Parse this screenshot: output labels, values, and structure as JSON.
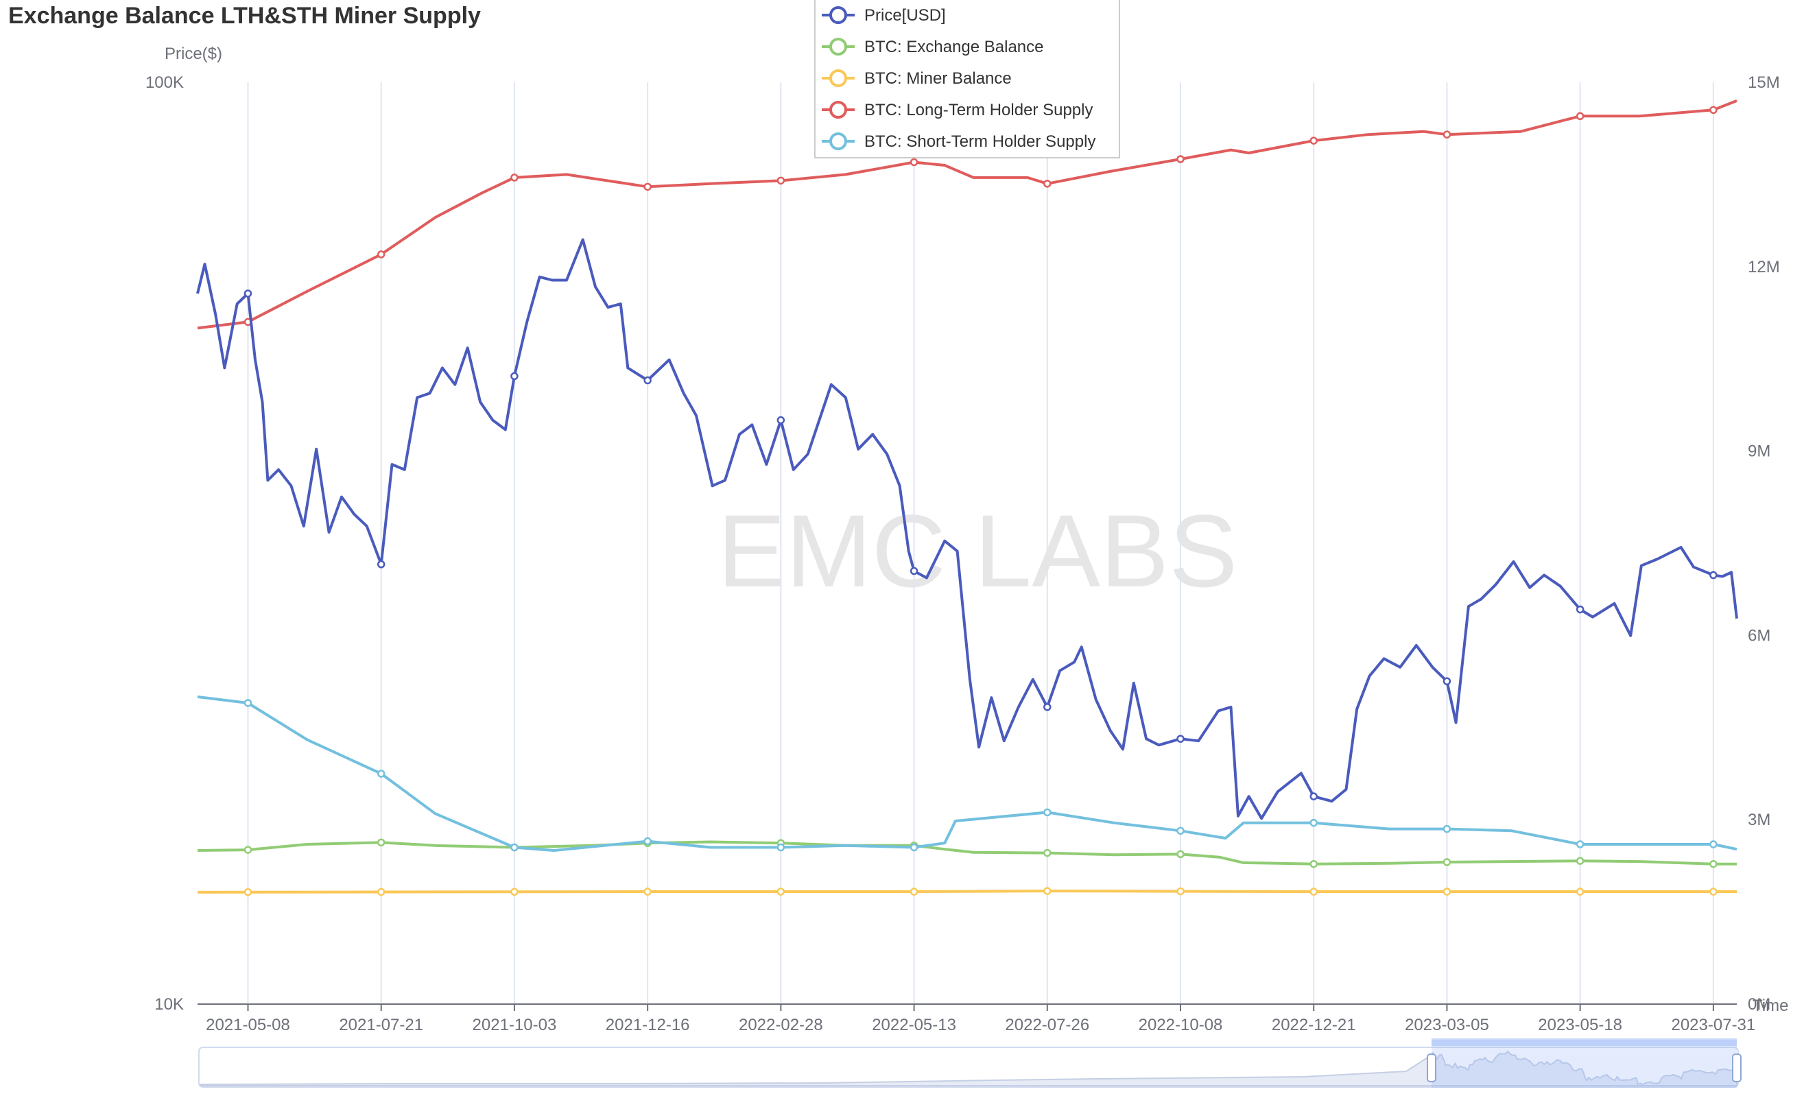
{
  "chart_data": {
    "type": "line",
    "title": "Exchange Balance LTH&STH Miner Supply",
    "watermark": "EMC LABS",
    "y_left": {
      "label": "Price($)",
      "scale": "log",
      "range": [
        10000,
        100000
      ],
      "ticks": [
        "10K",
        "100K"
      ]
    },
    "y_right": {
      "label": "",
      "range": [
        0,
        15000000
      ],
      "ticks": [
        "0M",
        "3M",
        "6M",
        "9M",
        "12M",
        "15M"
      ]
    },
    "x_axis": {
      "label": "Time",
      "range": [
        "2021-04-10",
        "2023-08-13"
      ],
      "ticks": [
        "2021-05-08",
        "2021-07-21",
        "2021-10-03",
        "2021-12-16",
        "2022-02-28",
        "2022-05-13",
        "2022-07-26",
        "2022-10-08",
        "2022-12-21",
        "2023-03-05",
        "2023-05-18",
        "2023-07-31"
      ]
    },
    "grid": "vertical",
    "legend_position": "top-center",
    "series": [
      {
        "name": "Price[USD]",
        "axis": "left",
        "color": "#4a5bbd",
        "points": [
          [
            "2021-04-10",
            59000
          ],
          [
            "2021-04-14",
            63500
          ],
          [
            "2021-04-20",
            56000
          ],
          [
            "2021-04-25",
            49000
          ],
          [
            "2021-05-02",
            57500
          ],
          [
            "2021-05-08",
            59000
          ],
          [
            "2021-05-12",
            50000
          ],
          [
            "2021-05-16",
            45000
          ],
          [
            "2021-05-19",
            37000
          ],
          [
            "2021-05-25",
            38000
          ],
          [
            "2021-06-01",
            36500
          ],
          [
            "2021-06-08",
            33000
          ],
          [
            "2021-06-15",
            40000
          ],
          [
            "2021-06-22",
            32500
          ],
          [
            "2021-06-29",
            35500
          ],
          [
            "2021-07-06",
            34000
          ],
          [
            "2021-07-13",
            33000
          ],
          [
            "2021-07-21",
            30000
          ],
          [
            "2021-07-27",
            38500
          ],
          [
            "2021-08-03",
            38000
          ],
          [
            "2021-08-10",
            45500
          ],
          [
            "2021-08-17",
            46000
          ],
          [
            "2021-08-24",
            49000
          ],
          [
            "2021-08-31",
            47000
          ],
          [
            "2021-09-07",
            51500
          ],
          [
            "2021-09-14",
            45000
          ],
          [
            "2021-09-21",
            43000
          ],
          [
            "2021-09-28",
            42000
          ],
          [
            "2021-10-03",
            48000
          ],
          [
            "2021-10-10",
            55000
          ],
          [
            "2021-10-17",
            61500
          ],
          [
            "2021-10-24",
            61000
          ],
          [
            "2021-11-01",
            61000
          ],
          [
            "2021-11-10",
            67500
          ],
          [
            "2021-11-17",
            60000
          ],
          [
            "2021-11-24",
            57000
          ],
          [
            "2021-12-01",
            57500
          ],
          [
            "2021-12-05",
            49000
          ],
          [
            "2021-12-16",
            47500
          ],
          [
            "2021-12-28",
            50000
          ],
          [
            "2022-01-05",
            46000
          ],
          [
            "2022-01-12",
            43500
          ],
          [
            "2022-01-21",
            36500
          ],
          [
            "2022-01-28",
            37000
          ],
          [
            "2022-02-05",
            41500
          ],
          [
            "2022-02-12",
            42500
          ],
          [
            "2022-02-20",
            38500
          ],
          [
            "2022-02-28",
            43000
          ],
          [
            "2022-03-07",
            38000
          ],
          [
            "2022-03-15",
            39500
          ],
          [
            "2022-03-28",
            47000
          ],
          [
            "2022-04-05",
            45500
          ],
          [
            "2022-04-12",
            40000
          ],
          [
            "2022-04-20",
            41500
          ],
          [
            "2022-04-28",
            39500
          ],
          [
            "2022-05-05",
            36500
          ],
          [
            "2022-05-10",
            31000
          ],
          [
            "2022-05-13",
            29500
          ],
          [
            "2022-05-20",
            29000
          ],
          [
            "2022-05-30",
            31800
          ],
          [
            "2022-06-06",
            31000
          ],
          [
            "2022-06-13",
            22500
          ],
          [
            "2022-06-18",
            19000
          ],
          [
            "2022-06-25",
            21500
          ],
          [
            "2022-07-02",
            19300
          ],
          [
            "2022-07-10",
            21000
          ],
          [
            "2022-07-18",
            22500
          ],
          [
            "2022-07-26",
            21000
          ],
          [
            "2022-08-02",
            23000
          ],
          [
            "2022-08-10",
            23500
          ],
          [
            "2022-08-14",
            24400
          ],
          [
            "2022-08-22",
            21400
          ],
          [
            "2022-08-30",
            19800
          ],
          [
            "2022-09-06",
            18900
          ],
          [
            "2022-09-12",
            22300
          ],
          [
            "2022-09-19",
            19400
          ],
          [
            "2022-09-26",
            19100
          ],
          [
            "2022-10-08",
            19400
          ],
          [
            "2022-10-18",
            19300
          ],
          [
            "2022-10-29",
            20800
          ],
          [
            "2022-11-05",
            21000
          ],
          [
            "2022-11-09",
            16000
          ],
          [
            "2022-11-15",
            16800
          ],
          [
            "2022-11-22",
            15900
          ],
          [
            "2022-12-01",
            17000
          ],
          [
            "2022-12-14",
            17800
          ],
          [
            "2022-12-21",
            16800
          ],
          [
            "2022-12-31",
            16600
          ],
          [
            "2023-01-08",
            17100
          ],
          [
            "2023-01-14",
            20900
          ],
          [
            "2023-01-21",
            22700
          ],
          [
            "2023-01-29",
            23700
          ],
          [
            "2023-02-07",
            23200
          ],
          [
            "2023-02-16",
            24500
          ],
          [
            "2023-02-25",
            23200
          ],
          [
            "2023-03-05",
            22400
          ],
          [
            "2023-03-10",
            20200
          ],
          [
            "2023-03-17",
            27000
          ],
          [
            "2023-03-24",
            27500
          ],
          [
            "2023-04-01",
            28500
          ],
          [
            "2023-04-11",
            30200
          ],
          [
            "2023-04-20",
            28300
          ],
          [
            "2023-04-28",
            29200
          ],
          [
            "2023-05-07",
            28400
          ],
          [
            "2023-05-18",
            26800
          ],
          [
            "2023-05-25",
            26300
          ],
          [
            "2023-06-06",
            27200
          ],
          [
            "2023-06-15",
            25100
          ],
          [
            "2023-06-21",
            29900
          ],
          [
            "2023-06-30",
            30400
          ],
          [
            "2023-07-13",
            31300
          ],
          [
            "2023-07-20",
            29800
          ],
          [
            "2023-07-31",
            29200
          ],
          [
            "2023-08-05",
            29100
          ],
          [
            "2023-08-10",
            29400
          ],
          [
            "2023-08-13",
            26200
          ]
        ]
      },
      {
        "name": "BTC: Exchange Balance",
        "axis": "right",
        "color": "#91cc75",
        "points": [
          [
            "2021-04-10",
            2500000
          ],
          [
            "2021-05-08",
            2510000
          ],
          [
            "2021-06-10",
            2600000
          ],
          [
            "2021-07-21",
            2630000
          ],
          [
            "2021-08-20",
            2580000
          ],
          [
            "2021-10-03",
            2550000
          ],
          [
            "2021-11-15",
            2580000
          ],
          [
            "2021-12-16",
            2620000
          ],
          [
            "2022-01-20",
            2640000
          ],
          [
            "2022-02-28",
            2620000
          ],
          [
            "2022-04-05",
            2580000
          ],
          [
            "2022-05-13",
            2580000
          ],
          [
            "2022-05-30",
            2520000
          ],
          [
            "2022-06-15",
            2470000
          ],
          [
            "2022-07-26",
            2460000
          ],
          [
            "2022-09-01",
            2430000
          ],
          [
            "2022-10-08",
            2440000
          ],
          [
            "2022-10-30",
            2390000
          ],
          [
            "2022-11-12",
            2300000
          ],
          [
            "2022-12-21",
            2280000
          ],
          [
            "2023-02-01",
            2290000
          ],
          [
            "2023-03-05",
            2310000
          ],
          [
            "2023-05-18",
            2330000
          ],
          [
            "2023-06-20",
            2320000
          ],
          [
            "2023-07-31",
            2280000
          ],
          [
            "2023-08-13",
            2280000
          ]
        ]
      },
      {
        "name": "BTC: Miner Balance",
        "axis": "right",
        "color": "#fac858",
        "points": [
          [
            "2021-04-10",
            1820000
          ],
          [
            "2021-07-21",
            1825000
          ],
          [
            "2021-12-16",
            1830000
          ],
          [
            "2022-05-13",
            1830000
          ],
          [
            "2022-07-26",
            1840000
          ],
          [
            "2022-10-08",
            1835000
          ],
          [
            "2022-12-21",
            1830000
          ],
          [
            "2023-05-18",
            1830000
          ],
          [
            "2023-08-13",
            1830000
          ]
        ]
      },
      {
        "name": "BTC: Long-Term Holder Supply",
        "axis": "right",
        "color": "#e05c5c",
        "points": [
          [
            "2021-04-10",
            11000000
          ],
          [
            "2021-05-08",
            11100000
          ],
          [
            "2021-06-10",
            11600000
          ],
          [
            "2021-07-21",
            12200000
          ],
          [
            "2021-08-20",
            12800000
          ],
          [
            "2021-09-15",
            13200000
          ],
          [
            "2021-10-03",
            13450000
          ],
          [
            "2021-11-01",
            13500000
          ],
          [
            "2021-12-16",
            13300000
          ],
          [
            "2022-01-20",
            13350000
          ],
          [
            "2022-02-28",
            13400000
          ],
          [
            "2022-04-05",
            13500000
          ],
          [
            "2022-05-13",
            13700000
          ],
          [
            "2022-05-30",
            13650000
          ],
          [
            "2022-06-15",
            13450000
          ],
          [
            "2022-07-15",
            13450000
          ],
          [
            "2022-07-26",
            13350000
          ],
          [
            "2022-08-30",
            13550000
          ],
          [
            "2022-10-08",
            13750000
          ],
          [
            "2022-11-05",
            13900000
          ],
          [
            "2022-11-15",
            13850000
          ],
          [
            "2022-12-21",
            14050000
          ],
          [
            "2023-01-20",
            14150000
          ],
          [
            "2023-02-20",
            14200000
          ],
          [
            "2023-03-05",
            14150000
          ],
          [
            "2023-04-15",
            14200000
          ],
          [
            "2023-05-18",
            14450000
          ],
          [
            "2023-06-20",
            14450000
          ],
          [
            "2023-07-31",
            14550000
          ],
          [
            "2023-08-13",
            14700000
          ]
        ]
      },
      {
        "name": "BTC: Short-Term Holder Supply",
        "axis": "right",
        "color": "#73c0de",
        "points": [
          [
            "2021-04-10",
            5000000
          ],
          [
            "2021-05-08",
            4900000
          ],
          [
            "2021-06-10",
            4300000
          ],
          [
            "2021-07-21",
            3750000
          ],
          [
            "2021-08-20",
            3100000
          ],
          [
            "2021-10-03",
            2550000
          ],
          [
            "2021-10-25",
            2500000
          ],
          [
            "2021-12-16",
            2650000
          ],
          [
            "2022-01-20",
            2550000
          ],
          [
            "2022-02-28",
            2550000
          ],
          [
            "2022-04-05",
            2580000
          ],
          [
            "2022-05-13",
            2550000
          ],
          [
            "2022-05-30",
            2620000
          ],
          [
            "2022-06-05",
            2980000
          ],
          [
            "2022-07-26",
            3120000
          ],
          [
            "2022-09-01",
            2950000
          ],
          [
            "2022-10-08",
            2820000
          ],
          [
            "2022-11-02",
            2700000
          ],
          [
            "2022-11-12",
            2950000
          ],
          [
            "2022-12-21",
            2950000
          ],
          [
            "2023-02-01",
            2850000
          ],
          [
            "2023-03-05",
            2850000
          ],
          [
            "2023-04-10",
            2820000
          ],
          [
            "2023-05-18",
            2600000
          ],
          [
            "2023-07-31",
            2600000
          ],
          [
            "2023-08-13",
            2520000
          ]
        ]
      }
    ]
  }
}
